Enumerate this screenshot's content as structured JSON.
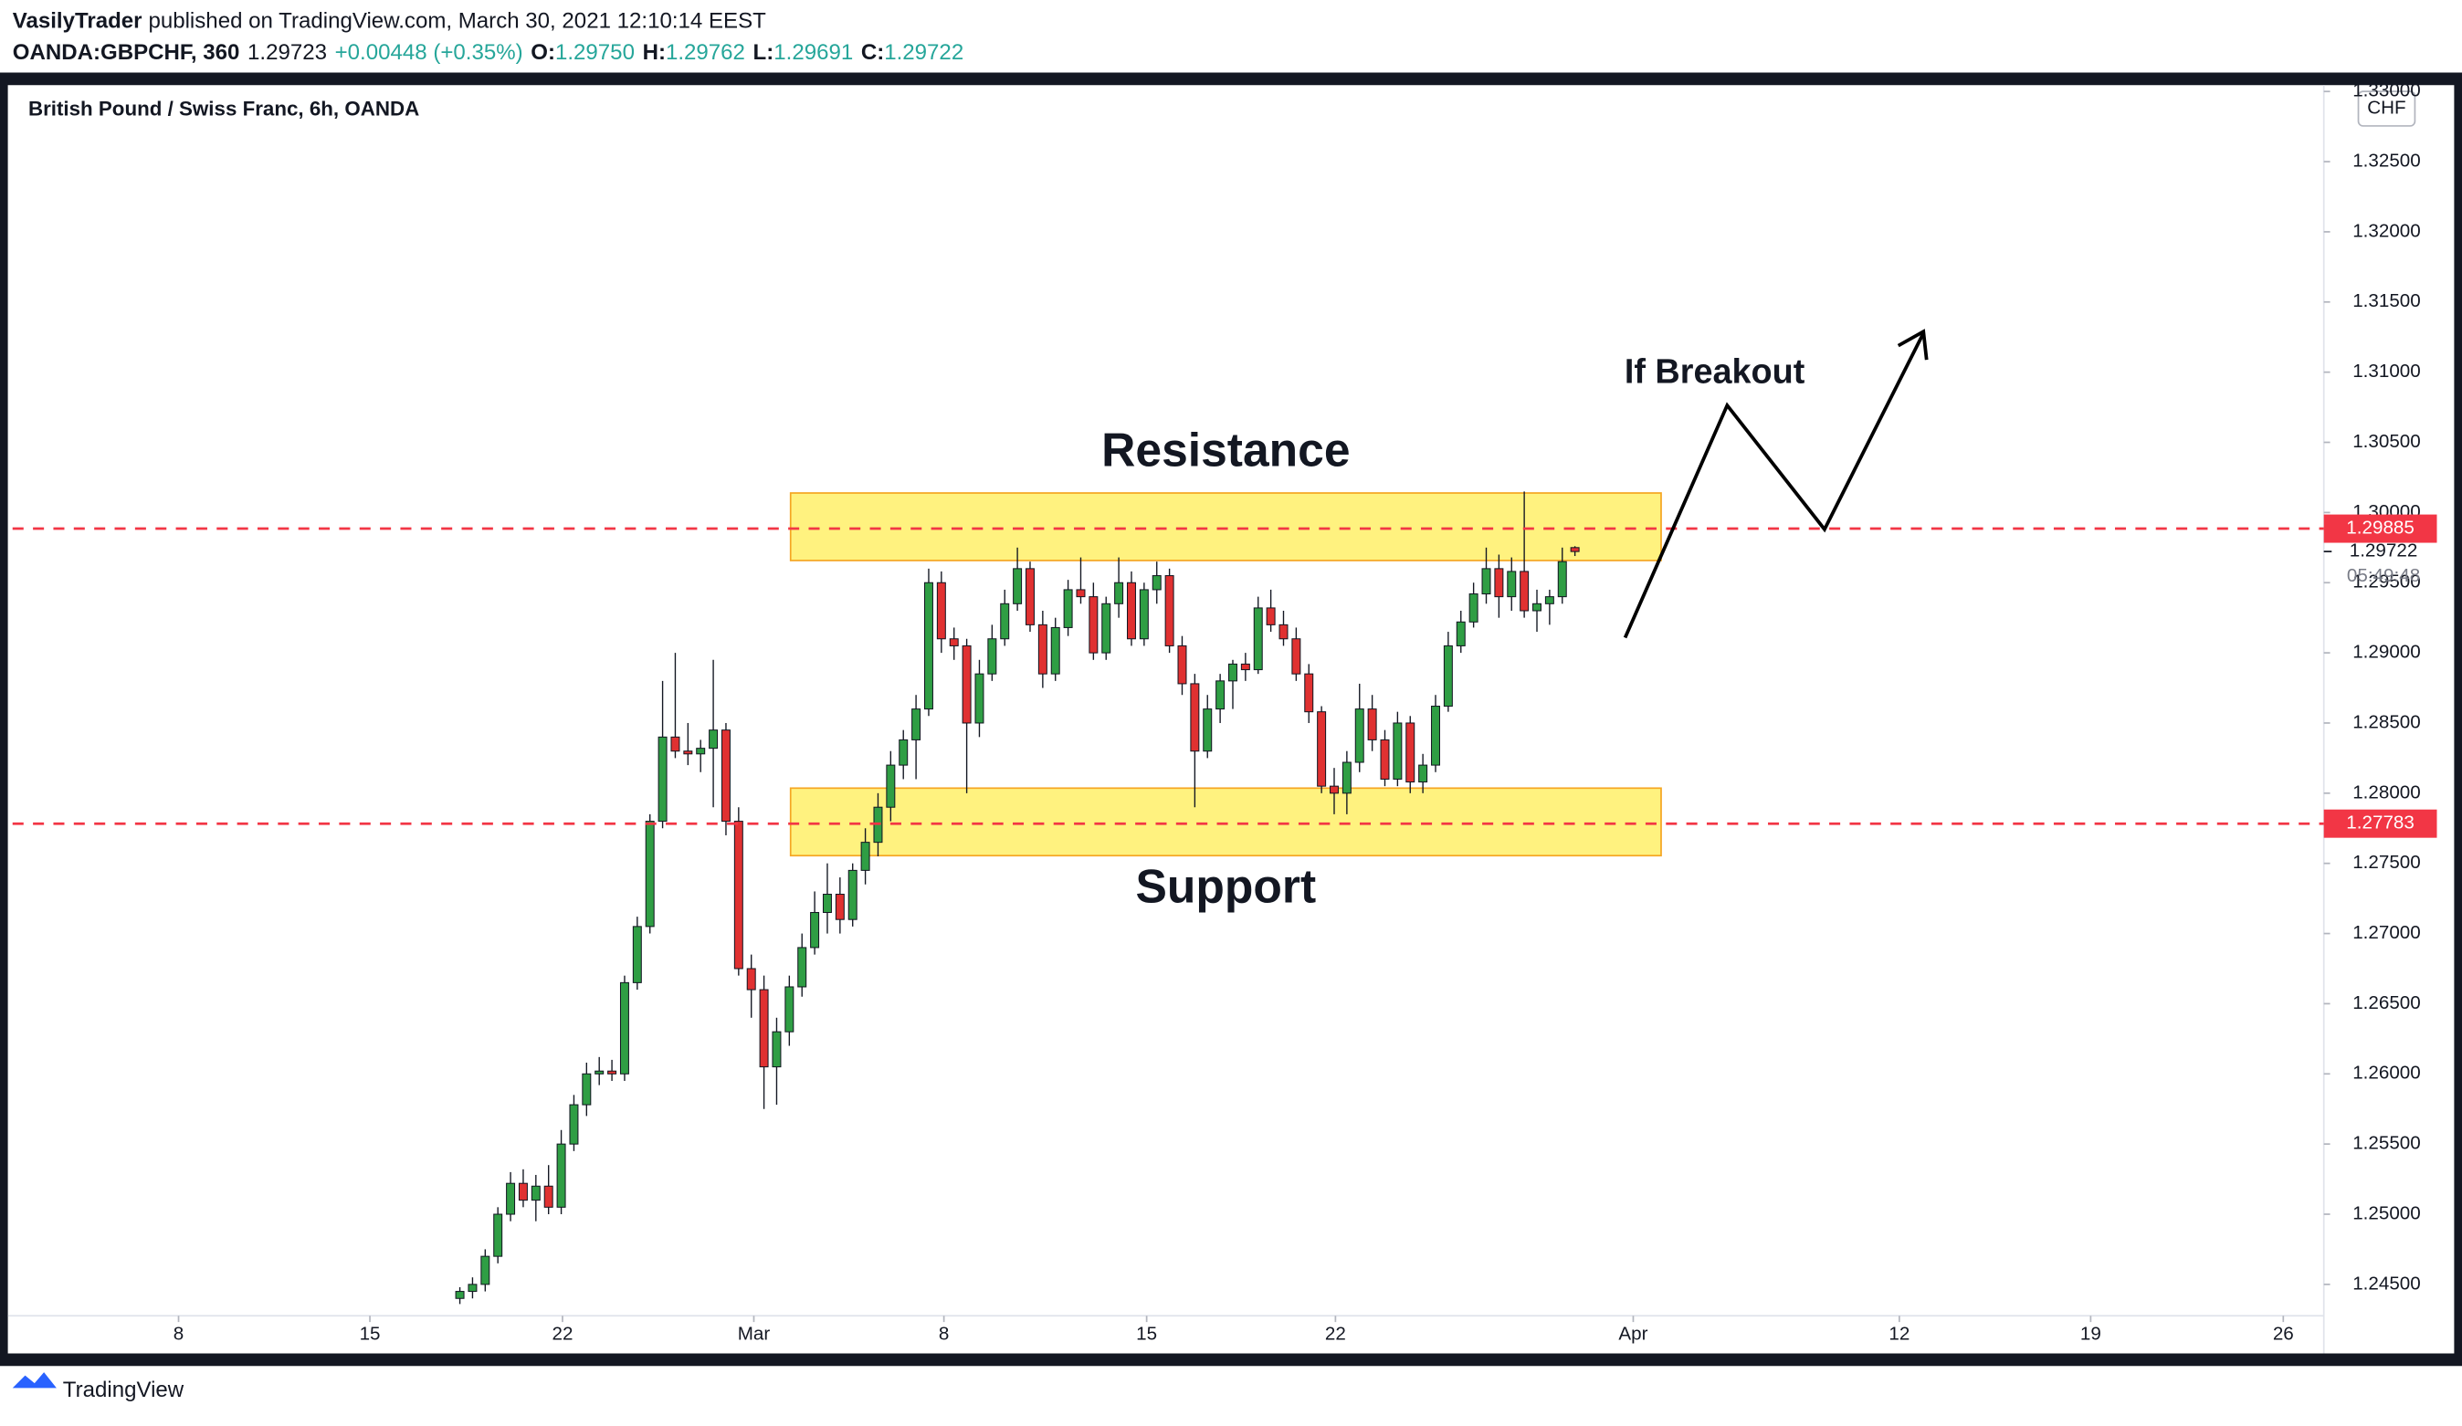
{
  "header": {
    "author": "VasilyTrader",
    "published": "published on TradingView.com, March 30, 2021 12:10:14 EEST",
    "symbol": "OANDA:GBPCHF, 360",
    "last": "1.29723",
    "change": "+0.00448 (+0.35%)",
    "ohlc": [
      {
        "label": "O:",
        "value": "1.29750"
      },
      {
        "label": "H:",
        "value": "1.29762"
      },
      {
        "label": "L:",
        "value": "1.29691"
      },
      {
        "label": "C:",
        "value": "1.29722"
      }
    ]
  },
  "footer": {
    "brand": "TradingView"
  },
  "chart_data": {
    "type": "candlestick",
    "title": "British Pound / Swiss Franc, 6h, OANDA",
    "currency": "CHF",
    "up_color": "#2f9e44",
    "down_color": "#e03131",
    "grid": false,
    "countdown": "05:49:48",
    "ohlc": [
      [
        1.244,
        1.2448,
        1.2436,
        1.2445
      ],
      [
        1.2445,
        1.2455,
        1.244,
        1.245
      ],
      [
        1.245,
        1.2475,
        1.2445,
        1.247
      ],
      [
        1.247,
        1.2505,
        1.2465,
        1.25
      ],
      [
        1.25,
        1.253,
        1.2495,
        1.2522
      ],
      [
        1.2522,
        1.2532,
        1.2505,
        1.251
      ],
      [
        1.251,
        1.2528,
        1.2495,
        1.252
      ],
      [
        1.252,
        1.2535,
        1.25,
        1.2505
      ],
      [
        1.2505,
        1.256,
        1.25,
        1.255
      ],
      [
        1.255,
        1.2585,
        1.2545,
        1.2578
      ],
      [
        1.2578,
        1.2608,
        1.257,
        1.26
      ],
      [
        1.26,
        1.2612,
        1.2592,
        1.2602
      ],
      [
        1.2602,
        1.261,
        1.2595,
        1.26
      ],
      [
        1.26,
        1.267,
        1.2595,
        1.2665
      ],
      [
        1.2665,
        1.2712,
        1.266,
        1.2705
      ],
      [
        1.2705,
        1.2785,
        1.27,
        1.278
      ],
      [
        1.278,
        1.288,
        1.2775,
        1.284
      ],
      [
        1.284,
        1.29,
        1.2825,
        1.283
      ],
      [
        1.283,
        1.285,
        1.282,
        1.2828
      ],
      [
        1.2828,
        1.2838,
        1.2815,
        1.2832
      ],
      [
        1.2832,
        1.2895,
        1.279,
        1.2845
      ],
      [
        1.2845,
        1.285,
        1.277,
        1.278
      ],
      [
        1.278,
        1.279,
        1.267,
        1.2675
      ],
      [
        1.2675,
        1.2685,
        1.264,
        1.266
      ],
      [
        1.266,
        1.267,
        1.2575,
        1.2605
      ],
      [
        1.2605,
        1.264,
        1.2578,
        1.263
      ],
      [
        1.263,
        1.267,
        1.262,
        1.2662
      ],
      [
        1.2662,
        1.27,
        1.2655,
        1.269
      ],
      [
        1.269,
        1.273,
        1.2685,
        1.2715
      ],
      [
        1.2715,
        1.275,
        1.27,
        1.2728
      ],
      [
        1.2728,
        1.274,
        1.27,
        1.271
      ],
      [
        1.271,
        1.275,
        1.2705,
        1.2745
      ],
      [
        1.2745,
        1.2775,
        1.2735,
        1.2765
      ],
      [
        1.2765,
        1.28,
        1.2755,
        1.279
      ],
      [
        1.279,
        1.283,
        1.278,
        1.282
      ],
      [
        1.282,
        1.2845,
        1.281,
        1.2838
      ],
      [
        1.2838,
        1.287,
        1.281,
        1.286
      ],
      [
        1.286,
        1.296,
        1.2855,
        1.295
      ],
      [
        1.295,
        1.2958,
        1.29,
        1.291
      ],
      [
        1.291,
        1.2918,
        1.2895,
        1.2905
      ],
      [
        1.2905,
        1.291,
        1.28,
        1.285
      ],
      [
        1.285,
        1.2895,
        1.284,
        1.2885
      ],
      [
        1.2885,
        1.292,
        1.288,
        1.291
      ],
      [
        1.291,
        1.2945,
        1.2905,
        1.2935
      ],
      [
        1.2935,
        1.2975,
        1.293,
        1.296
      ],
      [
        1.296,
        1.2965,
        1.2915,
        1.292
      ],
      [
        1.292,
        1.293,
        1.2875,
        1.2885
      ],
      [
        1.2885,
        1.2925,
        1.288,
        1.2918
      ],
      [
        1.2918,
        1.2952,
        1.2912,
        1.2945
      ],
      [
        1.2945,
        1.2968,
        1.2935,
        1.294
      ],
      [
        1.294,
        1.295,
        1.2895,
        1.29
      ],
      [
        1.29,
        1.294,
        1.2895,
        1.2935
      ],
      [
        1.2935,
        1.2968,
        1.2925,
        1.295
      ],
      [
        1.295,
        1.2958,
        1.2905,
        1.291
      ],
      [
        1.291,
        1.295,
        1.2905,
        1.2945
      ],
      [
        1.2945,
        1.2965,
        1.2935,
        1.2955
      ],
      [
        1.2955,
        1.296,
        1.29,
        1.2905
      ],
      [
        1.2905,
        1.2912,
        1.287,
        1.2878
      ],
      [
        1.2878,
        1.2885,
        1.279,
        1.283
      ],
      [
        1.283,
        1.287,
        1.2825,
        1.286
      ],
      [
        1.286,
        1.2885,
        1.285,
        1.288
      ],
      [
        1.288,
        1.2895,
        1.286,
        1.2892
      ],
      [
        1.2892,
        1.29,
        1.288,
        1.2888
      ],
      [
        1.2888,
        1.294,
        1.2885,
        1.2932
      ],
      [
        1.2932,
        1.2945,
        1.2915,
        1.292
      ],
      [
        1.292,
        1.293,
        1.2905,
        1.291
      ],
      [
        1.291,
        1.2918,
        1.288,
        1.2885
      ],
      [
        1.2885,
        1.2892,
        1.285,
        1.2858
      ],
      [
        1.2858,
        1.2862,
        1.28,
        1.2805
      ],
      [
        1.2805,
        1.2818,
        1.2785,
        1.28
      ],
      [
        1.28,
        1.283,
        1.2785,
        1.2822
      ],
      [
        1.2822,
        1.2878,
        1.2815,
        1.286
      ],
      [
        1.286,
        1.287,
        1.283,
        1.2838
      ],
      [
        1.2838,
        1.2845,
        1.2805,
        1.281
      ],
      [
        1.281,
        1.2858,
        1.2805,
        1.285
      ],
      [
        1.285,
        1.2855,
        1.28,
        1.2808
      ],
      [
        1.2808,
        1.2828,
        1.28,
        1.282
      ],
      [
        1.282,
        1.287,
        1.2815,
        1.2862
      ],
      [
        1.2862,
        1.2915,
        1.2858,
        1.2905
      ],
      [
        1.2905,
        1.293,
        1.29,
        1.2922
      ],
      [
        1.2922,
        1.295,
        1.2918,
        1.2942
      ],
      [
        1.2942,
        1.2975,
        1.2935,
        1.296
      ],
      [
        1.296,
        1.297,
        1.2925,
        1.294
      ],
      [
        1.294,
        1.2968,
        1.293,
        1.2958
      ],
      [
        1.2958,
        1.3015,
        1.2925,
        1.293
      ],
      [
        1.293,
        1.2945,
        1.2915,
        1.2935
      ],
      [
        1.2935,
        1.2945,
        1.292,
        1.294
      ],
      [
        1.294,
        1.2975,
        1.2935,
        1.2965
      ],
      [
        1.2975,
        1.2976,
        1.2969,
        1.29722
      ]
    ],
    "xlim": [
      -35.3,
      147.1
    ],
    "xticks": [
      {
        "value": -22.2,
        "label": "8"
      },
      {
        "value": -7.1,
        "label": "15"
      },
      {
        "value": 8.1,
        "label": "22"
      },
      {
        "value": 23.2,
        "label": "Mar"
      },
      {
        "value": 38.2,
        "label": "8"
      },
      {
        "value": 54.2,
        "label": "15"
      },
      {
        "value": 69.1,
        "label": "22"
      },
      {
        "value": 92.6,
        "label": "Apr"
      },
      {
        "value": 113.6,
        "label": "12"
      },
      {
        "value": 128.7,
        "label": "19"
      },
      {
        "value": 143.9,
        "label": "26"
      }
    ],
    "ylim": [
      1.2431,
      1.3309
    ],
    "yticks": [
      {
        "value": 1.245,
        "label": "1.24500"
      },
      {
        "value": 1.25,
        "label": "1.25000"
      },
      {
        "value": 1.255,
        "label": "1.25500"
      },
      {
        "value": 1.26,
        "label": "1.26000"
      },
      {
        "value": 1.265,
        "label": "1.26500"
      },
      {
        "value": 1.27,
        "label": "1.27000"
      },
      {
        "value": 1.275,
        "label": "1.27500"
      },
      {
        "value": 1.28,
        "label": "1.28000"
      },
      {
        "value": 1.285,
        "label": "1.28500"
      },
      {
        "value": 1.29,
        "label": "1.29000"
      },
      {
        "value": 1.295,
        "label": "1.29500"
      },
      {
        "value": 1.3,
        "label": "1.30000"
      },
      {
        "value": 1.305,
        "label": "1.30500"
      },
      {
        "value": 1.31,
        "label": "1.31000"
      },
      {
        "value": 1.315,
        "label": "1.31500"
      },
      {
        "value": 1.32,
        "label": "1.32000"
      },
      {
        "value": 1.325,
        "label": "1.32500"
      },
      {
        "value": 1.33,
        "label": "1.33000"
      }
    ],
    "hlines": [
      {
        "value": 1.29885,
        "color": "#f23645"
      },
      {
        "value": 1.27783,
        "color": "#f23645"
      }
    ],
    "zones": [
      {
        "label": "Resistance",
        "label_position": "above",
        "top": 1.30139,
        "bottom": 1.29658,
        "x": [
          26.1,
          94.8
        ]
      },
      {
        "label": "Support",
        "label_position": "below",
        "top": 1.28036,
        "bottom": 1.27555,
        "x": [
          26.1,
          94.8
        ]
      }
    ],
    "zone_color": "#ffeb3b",
    "annotation": "If Breakout"
  }
}
